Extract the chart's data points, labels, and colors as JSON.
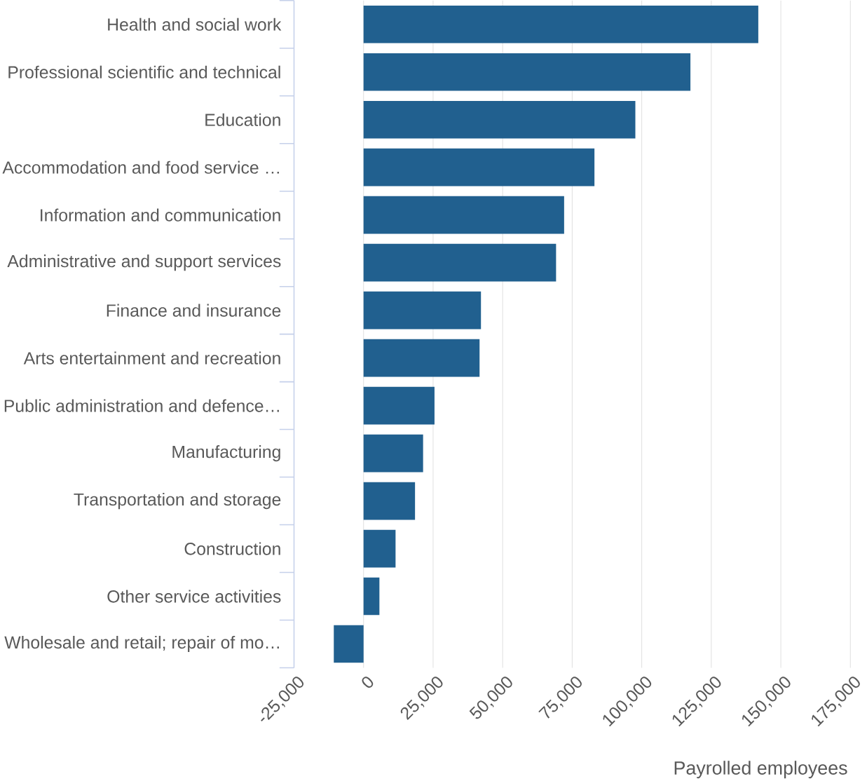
{
  "chart_data": {
    "type": "bar",
    "orientation": "horizontal",
    "xlabel": "Payrolled employees",
    "categories": [
      "Health and social work",
      "Professional scientific and technical",
      "Education",
      "Accommodation and food service …",
      "Information and communication",
      "Administrative and support services",
      "Finance and insurance",
      "Arts entertainment and recreation",
      "Public administration and defence…",
      "Manufacturing",
      "Transportation and storage",
      "Construction",
      "Other service activities",
      "Wholesale and retail; repair of mo…"
    ],
    "values": [
      141900,
      117500,
      97700,
      83000,
      72100,
      69200,
      42200,
      41700,
      25500,
      21400,
      18500,
      11500,
      5700,
      -10700
    ],
    "color": "#21608f",
    "xlim": [
      -25000,
      175000
    ],
    "xticks": [
      {
        "value": -25000,
        "label": "-25,000"
      },
      {
        "value": 0,
        "label": "0"
      },
      {
        "value": 25000,
        "label": "25,000"
      },
      {
        "value": 50000,
        "label": "50,000"
      },
      {
        "value": 75000,
        "label": "75,000"
      },
      {
        "value": 100000,
        "label": "100,000"
      },
      {
        "value": 125000,
        "label": "125,000"
      },
      {
        "value": 150000,
        "label": "150,000"
      },
      {
        "value": 175000,
        "label": "175,000"
      }
    ],
    "grid": "x"
  }
}
